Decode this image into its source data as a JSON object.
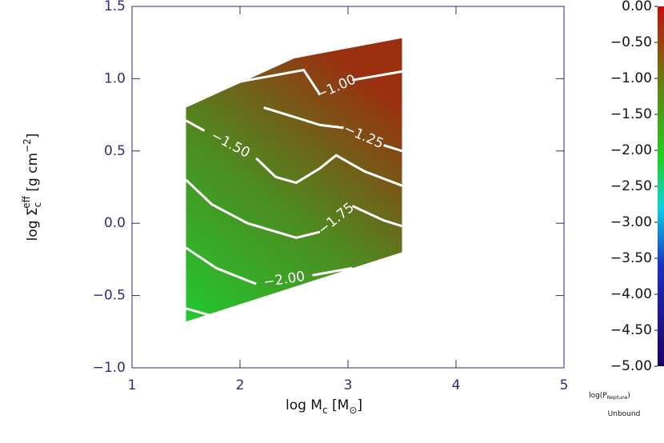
{
  "chart_data": {
    "type": "contour",
    "xlabel_parts": [
      "log M",
      "c",
      " [M",
      "⊙",
      "]"
    ],
    "ylabel_parts": [
      "log Σ",
      "c",
      "eff",
      " [g cm",
      "−2",
      "]"
    ],
    "xlim": [
      1,
      5
    ],
    "xticks": [
      1,
      2,
      3,
      4,
      5
    ],
    "ylim": [
      -1.0,
      1.5
    ],
    "yticks": [
      {
        "value": -1.0,
        "label": "−1.0"
      },
      {
        "value": -0.5,
        "label": "−0.5"
      },
      {
        "value": 0.0,
        "label": "0.0"
      },
      {
        "value": 0.5,
        "label": "0.5"
      },
      {
        "value": 1.0,
        "label": "1.0"
      },
      {
        "value": 1.5,
        "label": "1.5"
      }
    ],
    "region": {
      "x": [
        1.5,
        2.5,
        3.5,
        3.5,
        1.5
      ],
      "y": [
        0.8,
        1.14,
        1.28,
        -0.2,
        -0.68
      ]
    },
    "contours": [
      {
        "label": "−1.00",
        "x": [
          1.93,
          2.59,
          2.74,
          null,
          3.04,
          3.5
        ],
        "y": [
          0.97,
          1.06,
          0.89,
          null,
          0.99,
          1.05
        ]
      },
      {
        "label": "−1.25",
        "x": [
          2.22,
          2.74,
          2.96,
          null,
          3.33,
          3.5
        ],
        "y": [
          0.8,
          0.68,
          0.66,
          null,
          0.54,
          0.5
        ]
      },
      {
        "label": "−1.50",
        "x": [
          1.5,
          1.67,
          null,
          2.15,
          2.33,
          2.52,
          2.74,
          2.89,
          3.15,
          3.5
        ],
        "y": [
          0.71,
          0.64,
          null,
          0.45,
          0.32,
          0.28,
          0.38,
          0.47,
          0.36,
          0.26
        ]
      },
      {
        "label": "−1.75",
        "x": [
          1.5,
          1.74,
          2.07,
          2.52,
          2.74,
          null,
          3.04,
          3.33,
          3.5
        ],
        "y": [
          0.3,
          0.13,
          0.0,
          -0.1,
          -0.06,
          null,
          0.12,
          0.02,
          -0.02
        ]
      },
      {
        "label": "−2.00",
        "x": [
          1.5,
          1.78,
          2.15,
          null,
          2.67,
          3.04
        ],
        "y": [
          -0.17,
          -0.31,
          -0.42,
          null,
          -0.36,
          -0.31
        ]
      },
      {
        "x": [
          1.5,
          1.74
        ],
        "y": [
          -0.59,
          -0.64
        ]
      }
    ],
    "colorbar": {
      "lim": [
        -5,
        0
      ],
      "ticks": [
        {
          "value": 0,
          "label": "0.00"
        },
        {
          "value": -0.5,
          "label": "−0.50"
        },
        {
          "value": -1,
          "label": "−1.00"
        },
        {
          "value": -1.5,
          "label": "−1.50"
        },
        {
          "value": -2,
          "label": "−2.00"
        },
        {
          "value": -2.5,
          "label": "−2.50"
        },
        {
          "value": -3,
          "label": "−3.00"
        },
        {
          "value": -3.5,
          "label": "−3.50"
        },
        {
          "value": -4,
          "label": "−4.00"
        },
        {
          "value": -4.5,
          "label": "−4.50"
        },
        {
          "value": -5,
          "label": "−5.00"
        }
      ],
      "colors": [
        {
          "value": -5,
          "color": "#200060"
        },
        {
          "value": -3.6,
          "color": "#1a30c0"
        },
        {
          "value": -2.8,
          "color": "#10d0e0"
        },
        {
          "value": -2.1,
          "color": "#20d020"
        },
        {
          "value": -1,
          "color": "#6a7a10"
        },
        {
          "value": 0,
          "color": "#c01010"
        }
      ]
    },
    "colorbar_label_parts": [
      "log(P",
      "Neptune",
      ")"
    ],
    "footnote": "Unbound"
  }
}
